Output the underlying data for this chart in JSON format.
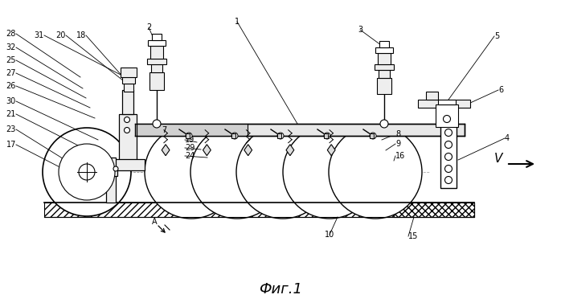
{
  "bg_color": "#ffffff",
  "line_color": "#000000",
  "title": "Фиг.1",
  "title_fontsize": 13,
  "fig_width": 6.98,
  "fig_height": 3.82,
  "dpi": 100
}
